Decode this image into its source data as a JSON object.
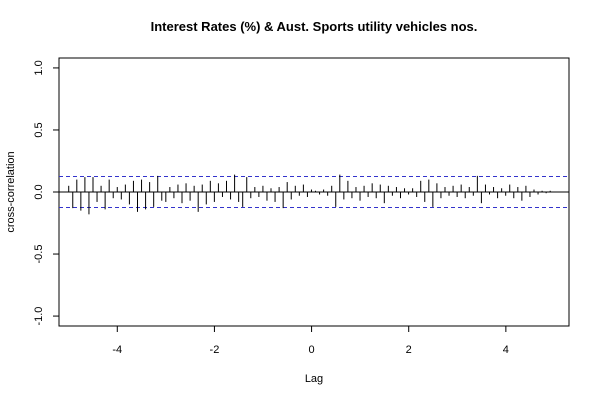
{
  "chart_data": {
    "type": "bar",
    "title": "Interest Rates (%) & Aust. Sports utility vehicles nos.",
    "xlabel": "Lag",
    "ylabel": "cross-correlation",
    "xlim": [
      -5.2,
      5.3
    ],
    "ylim": [
      -1.08,
      1.08
    ],
    "x_ticks": [
      -4,
      -2,
      0,
      2,
      4
    ],
    "x_tick_labels": [
      "-4",
      "-2",
      "0",
      "2",
      "4"
    ],
    "y_ticks": [
      -1.0,
      -0.5,
      0.0,
      0.5,
      1.0
    ],
    "y_tick_labels": [
      "-1.0",
      "-0.5",
      "0.0",
      "0.5",
      "1.0"
    ],
    "confidence_band": 0.125,
    "grid": false,
    "lag_start": -5.0,
    "lag_step": 0.0833,
    "values": [
      0.05,
      -0.13,
      0.1,
      -0.15,
      0.12,
      -0.18,
      0.12,
      -0.08,
      0.05,
      -0.14,
      0.1,
      -0.05,
      0.04,
      -0.06,
      0.06,
      -0.1,
      0.09,
      -0.16,
      0.1,
      -0.14,
      0.08,
      -0.12,
      0.13,
      -0.07,
      -0.08,
      0.04,
      -0.05,
      0.06,
      -0.09,
      0.07,
      -0.07,
      0.05,
      -0.16,
      0.06,
      -0.1,
      0.09,
      -0.08,
      0.07,
      -0.04,
      0.09,
      -0.06,
      0.14,
      -0.08,
      -0.12,
      0.12,
      -0.05,
      0.04,
      -0.04,
      0.05,
      -0.07,
      0.03,
      -0.08,
      0.04,
      -0.13,
      0.08,
      -0.06,
      0.05,
      -0.03,
      0.06,
      -0.04,
      0.02,
      0.01,
      -0.02,
      0.02,
      -0.03,
      0.05,
      -0.12,
      0.14,
      -0.06,
      0.09,
      -0.05,
      0.04,
      -0.07,
      0.05,
      -0.04,
      0.07,
      -0.05,
      0.06,
      -0.09,
      0.05,
      -0.03,
      0.04,
      -0.05,
      0.03,
      -0.02,
      0.03,
      -0.04,
      0.09,
      -0.08,
      0.1,
      -0.12,
      0.07,
      -0.05,
      0.04,
      -0.03,
      0.05,
      -0.04,
      0.06,
      -0.05,
      0.04,
      -0.03,
      0.13,
      -0.09,
      0.06,
      -0.02,
      0.04,
      -0.05,
      0.03,
      -0.03,
      0.06,
      -0.05,
      0.04,
      -0.07,
      0.05,
      -0.04,
      0.02,
      -0.02,
      0.01,
      -0.01,
      0.01
    ]
  }
}
